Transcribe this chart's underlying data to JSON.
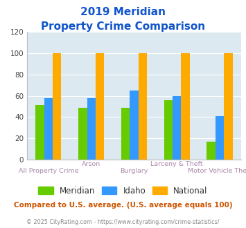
{
  "title_line1": "2019 Meridian",
  "title_line2": "Property Crime Comparison",
  "categories": [
    "All Property Crime",
    "Arson",
    "Burglary",
    "Larceny & Theft",
    "Motor Vehicle Theft"
  ],
  "meridian": [
    51,
    49,
    49,
    56,
    17
  ],
  "idaho": [
    58,
    58,
    65,
    60,
    41
  ],
  "national": [
    100,
    100,
    100,
    100,
    100
  ],
  "bar_colors": {
    "Meridian": "#66cc00",
    "Idaho": "#3399ff",
    "National": "#ffaa00"
  },
  "ylim": [
    0,
    120
  ],
  "yticks": [
    0,
    20,
    40,
    60,
    80,
    100,
    120
  ],
  "bg_color": "#dce9f0",
  "title_color": "#1155cc",
  "xlabel_color": "#aa88aa",
  "footer_text": "Compared to U.S. average. (U.S. average equals 100)",
  "footer_color": "#cc5500",
  "copyright_text": "© 2025 CityRating.com - https://www.cityrating.com/crime-statistics/",
  "copyright_color": "#888888",
  "legend_labels": [
    "Meridian",
    "Idaho",
    "National"
  ]
}
